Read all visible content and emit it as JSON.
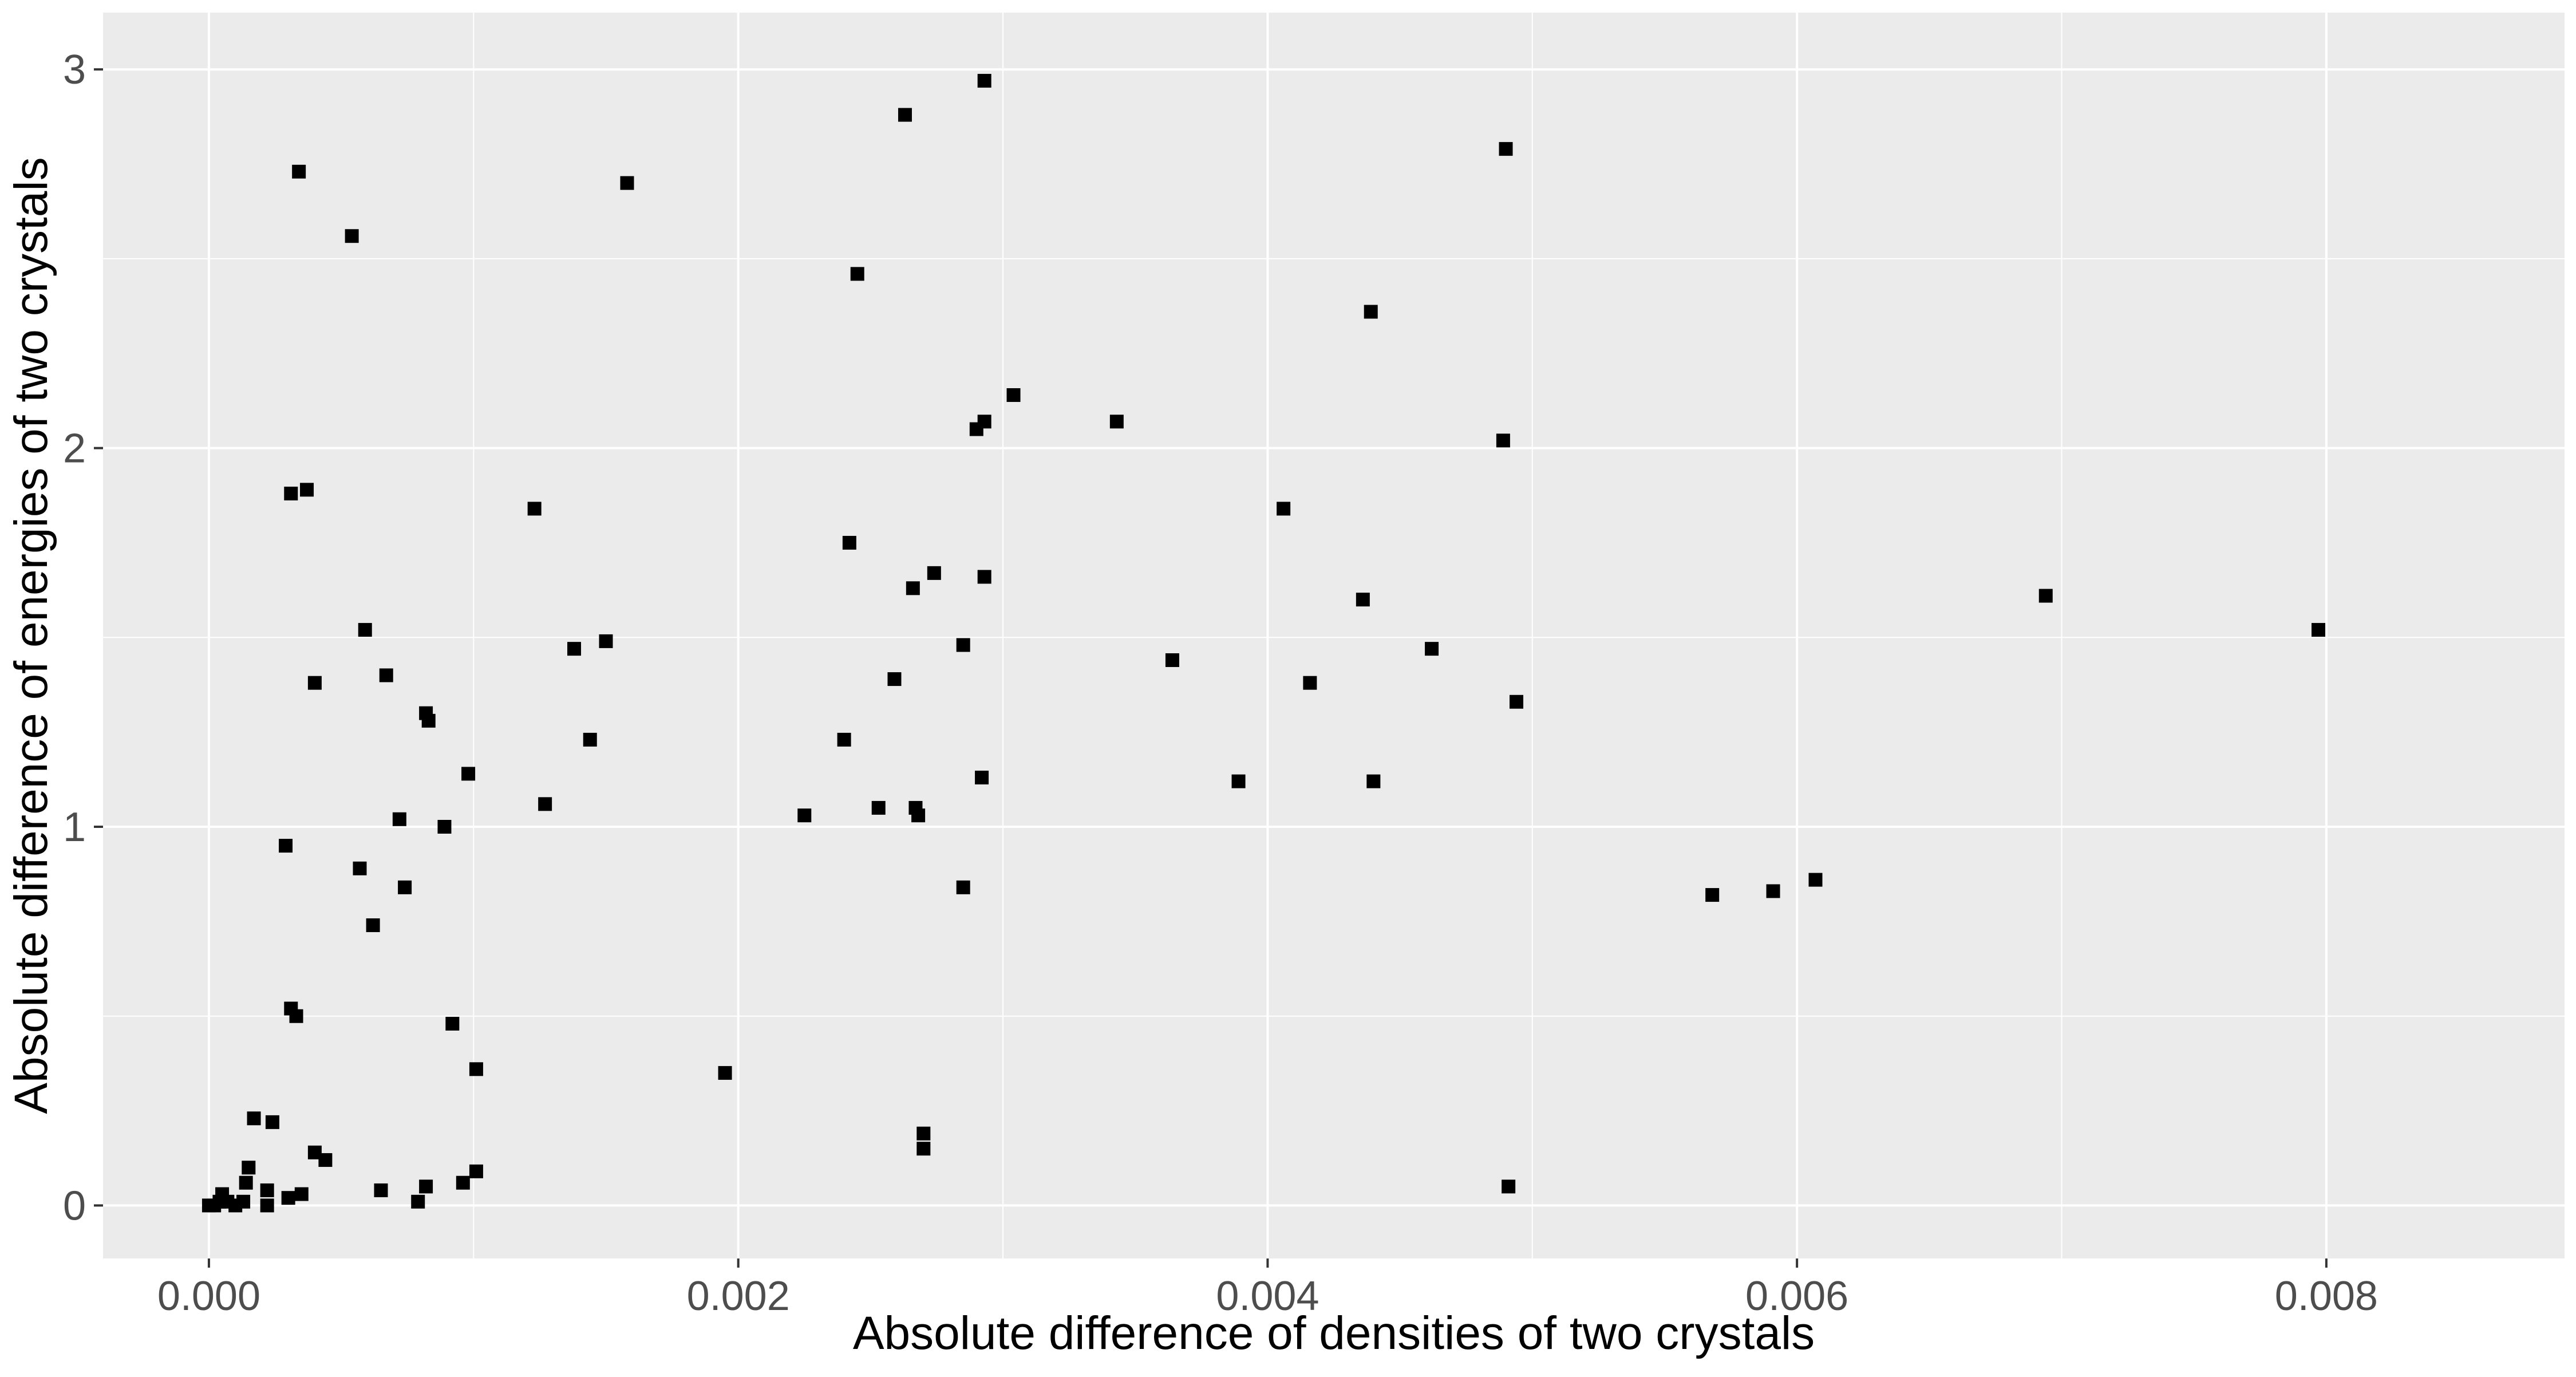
{
  "colors": {
    "panel_background": "#ebebeb",
    "major_grid": "#ffffff",
    "minor_grid": "#f5f5f5",
    "point": "#000000",
    "tick_label": "#4d4d4d",
    "axis_title": "#000000"
  },
  "chart_data": {
    "type": "scatter",
    "title": "",
    "xlabel": "Absolute difference of densities of two crystals",
    "ylabel": "Absolute difference of energies of two crystals",
    "xlim": [
      -0.0004,
      0.0089
    ],
    "ylim": [
      -0.14,
      3.15
    ],
    "x_ticks": [
      0.0,
      0.002,
      0.004,
      0.006,
      0.008
    ],
    "x_tick_labels": [
      "0.000",
      "0.002",
      "0.004",
      "0.006",
      "0.008"
    ],
    "y_ticks": [
      0,
      1,
      2,
      3
    ],
    "y_tick_labels": [
      "0",
      "1",
      "2",
      "3"
    ],
    "grid": true,
    "legend": "none",
    "marker": "square",
    "series": [
      {
        "points": [
          [
            0.0,
            0.0
          ],
          [
            2e-05,
            0.0
          ],
          [
            4e-05,
            0.01
          ],
          [
            5e-05,
            0.03
          ],
          [
            7e-05,
            0.01
          ],
          [
            0.0001,
            0.0
          ],
          [
            0.00013,
            0.01
          ],
          [
            0.00014,
            0.06
          ],
          [
            0.00015,
            0.1
          ],
          [
            0.00017,
            0.23
          ],
          [
            0.00022,
            0.0
          ],
          [
            0.00022,
            0.04
          ],
          [
            0.00024,
            0.22
          ],
          [
            0.00029,
            0.95
          ],
          [
            0.0003,
            0.02
          ],
          [
            0.00031,
            0.52
          ],
          [
            0.00031,
            1.88
          ],
          [
            0.00033,
            0.5
          ],
          [
            0.00034,
            2.73
          ],
          [
            0.00035,
            0.03
          ],
          [
            0.00037,
            1.89
          ],
          [
            0.0004,
            1.38
          ],
          [
            0.0004,
            0.14
          ],
          [
            0.00044,
            0.12
          ],
          [
            0.00054,
            2.56
          ],
          [
            0.00057,
            0.89
          ],
          [
            0.00059,
            1.52
          ],
          [
            0.00062,
            0.74
          ],
          [
            0.00065,
            0.04
          ],
          [
            0.00067,
            1.4
          ],
          [
            0.00072,
            1.02
          ],
          [
            0.00074,
            0.84
          ],
          [
            0.00079,
            0.01
          ],
          [
            0.00082,
            0.05
          ],
          [
            0.00082,
            1.3
          ],
          [
            0.00083,
            1.28
          ],
          [
            0.00089,
            1.0
          ],
          [
            0.00092,
            0.48
          ],
          [
            0.00096,
            0.06
          ],
          [
            0.00098,
            1.14
          ],
          [
            0.00101,
            0.09
          ],
          [
            0.00101,
            0.36
          ],
          [
            0.00123,
            1.84
          ],
          [
            0.00127,
            1.06
          ],
          [
            0.00138,
            1.47
          ],
          [
            0.00144,
            1.23
          ],
          [
            0.0015,
            1.49
          ],
          [
            0.00158,
            2.7
          ],
          [
            0.00195,
            0.35
          ],
          [
            0.00225,
            1.03
          ],
          [
            0.0024,
            1.23
          ],
          [
            0.00242,
            1.75
          ],
          [
            0.00245,
            2.46
          ],
          [
            0.00253,
            1.05
          ],
          [
            0.00259,
            1.39
          ],
          [
            0.00263,
            2.88
          ],
          [
            0.00266,
            1.63
          ],
          [
            0.00267,
            1.05
          ],
          [
            0.00268,
            1.03
          ],
          [
            0.0027,
            0.19
          ],
          [
            0.0027,
            0.15
          ],
          [
            0.00274,
            1.67
          ],
          [
            0.00285,
            0.84
          ],
          [
            0.00285,
            1.48
          ],
          [
            0.0029,
            2.05
          ],
          [
            0.00292,
            1.13
          ],
          [
            0.00293,
            2.07
          ],
          [
            0.00293,
            1.66
          ],
          [
            0.00293,
            2.97
          ],
          [
            0.00304,
            2.14
          ],
          [
            0.00343,
            2.07
          ],
          [
            0.00364,
            1.44
          ],
          [
            0.00389,
            1.12
          ],
          [
            0.00406,
            1.84
          ],
          [
            0.00416,
            1.38
          ],
          [
            0.00436,
            1.6
          ],
          [
            0.00439,
            2.36
          ],
          [
            0.0044,
            1.12
          ],
          [
            0.00462,
            1.47
          ],
          [
            0.00489,
            2.02
          ],
          [
            0.0049,
            2.79
          ],
          [
            0.00491,
            0.05
          ],
          [
            0.00494,
            1.33
          ],
          [
            0.00568,
            0.82
          ],
          [
            0.00591,
            0.83
          ],
          [
            0.00607,
            0.86
          ],
          [
            0.00694,
            1.61
          ],
          [
            0.00797,
            1.52
          ]
        ]
      }
    ]
  }
}
